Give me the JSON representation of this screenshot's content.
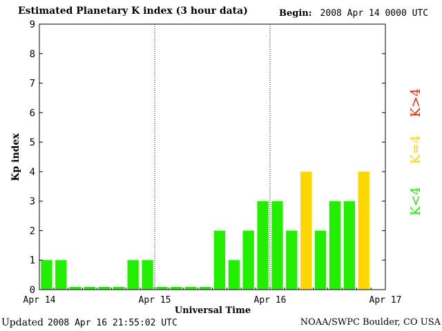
{
  "header": {
    "title": "Estimated Planetary K index (3 hour data)",
    "begin_label": "Begin:",
    "begin_value": "2008 Apr 14 0000 UTC"
  },
  "footer": {
    "updated_label": "Updated",
    "updated_value": "2008 Apr 16 21:55:02 UTC",
    "credit": "NOAA/SWPC Boulder, CO USA"
  },
  "legend": {
    "high": {
      "label": "K>4",
      "color": "#ff2200"
    },
    "equal": {
      "label": "K=4",
      "color": "#ffd700"
    },
    "low": {
      "label": "K<4",
      "color": "#22ee00"
    }
  },
  "chart_data": {
    "type": "bar",
    "title": "Estimated Planetary K index (3 hour data)",
    "xlabel": "Universal Time",
    "ylabel": "Kp index",
    "ylim": [
      0,
      9
    ],
    "yticks": [
      0,
      1,
      2,
      3,
      4,
      5,
      6,
      7,
      8,
      9
    ],
    "xticks": [
      "Apr 14",
      "Apr 15",
      "Apr 16",
      "Apr 17"
    ],
    "bars_per_day": 8,
    "grid": "dotted day separators",
    "values": [
      1,
      1,
      0,
      0,
      0,
      0,
      1,
      1,
      0,
      0,
      0,
      0,
      2,
      1,
      2,
      3,
      3,
      2,
      4,
      2,
      3,
      3,
      4
    ],
    "colors": {
      "low": "#22ee00",
      "equal": "#ffd700",
      "high": "#ff2200"
    }
  }
}
